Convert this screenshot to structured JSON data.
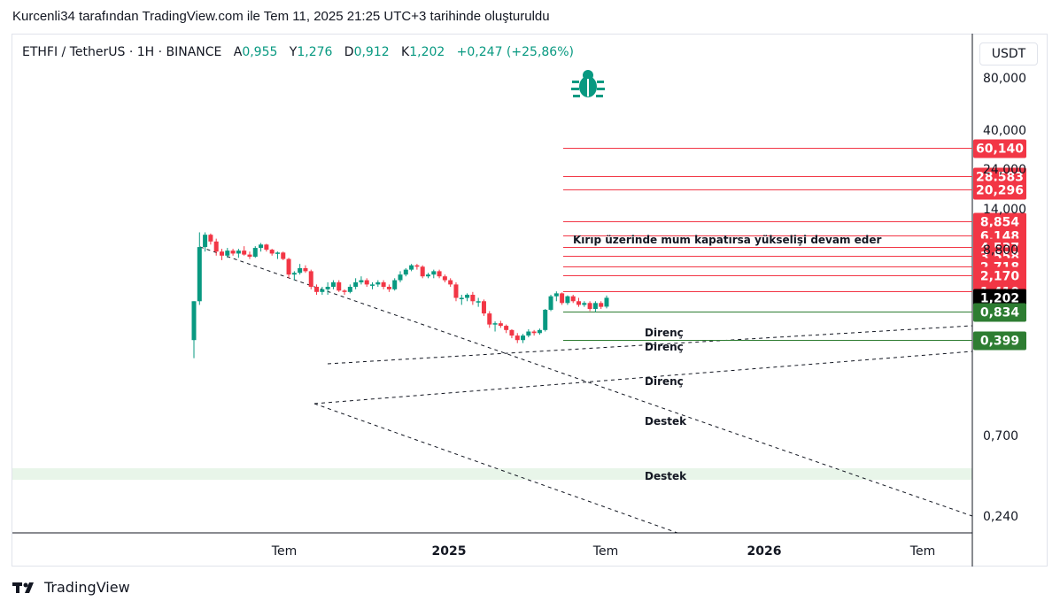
{
  "header": {
    "title": "Kurcenli34 tarafından TradingView.com ile Tem 11, 2025 21:25 UTC+3 tarihinde oluşturuldu"
  },
  "symbol": {
    "pair": "ETHFI / TetherUS · 1H · BINANCE",
    "open_label": "A",
    "open": "0,955",
    "high_label": "Y",
    "high": "1,276",
    "low_label": "D",
    "low": "0,912",
    "close_label": "K",
    "close": "1,202",
    "change": "+0,247 (+25,86%)"
  },
  "currency_button": "USDT",
  "footer": {
    "brand": "TradingView"
  },
  "colors": {
    "up": "#089981",
    "down": "#f23645",
    "resistance": "#f23645",
    "support": "#2e7d32",
    "support_zone": "#e8f5e9",
    "current": "#000000"
  },
  "chart_data": {
    "type": "candlestick",
    "scale": "log",
    "x_ticks": [
      "Tem",
      "2025",
      "Tem",
      "2026",
      "Tem"
    ],
    "y_ticks": [
      "80,000",
      "40,000",
      "24,000",
      "14,000",
      "8,800",
      "0,700",
      "0,240"
    ],
    "price_levels": [
      {
        "label": "60,140",
        "value": 60.14,
        "kind": "resistance"
      },
      {
        "label": "28,583",
        "value": 28.583,
        "kind": "resistance"
      },
      {
        "label": "20,296",
        "value": 20.296,
        "kind": "resistance"
      },
      {
        "label": "8,854",
        "value": 8.854,
        "kind": "resistance"
      },
      {
        "label": "6,148",
        "value": 6.148,
        "kind": "resistance"
      },
      {
        "label": "4,537",
        "value": 4.537,
        "kind": "resistance"
      },
      {
        "label": "3,558",
        "value": 3.558,
        "kind": "resistance"
      },
      {
        "label": "2,718",
        "value": 2.718,
        "kind": "resistance"
      },
      {
        "label": "2,170",
        "value": 2.17,
        "kind": "resistance"
      },
      {
        "label": "1,410",
        "value": 1.41,
        "kind": "resistance"
      },
      {
        "label": "1,202",
        "value": 1.202,
        "kind": "current"
      },
      {
        "label": "0,834",
        "value": 0.834,
        "kind": "support"
      },
      {
        "label": "0,399",
        "value": 0.399,
        "kind": "support"
      }
    ],
    "annotations": [
      {
        "text": "Kırıp üzerinde mum kapatırsa yükselişi devam eder"
      },
      {
        "text": "Direnç"
      },
      {
        "text": "Direnç"
      },
      {
        "text": "Direnç"
      },
      {
        "text": "Destek"
      },
      {
        "text": "Destek"
      }
    ],
    "candles": [
      {
        "o": 0.4,
        "h": 1.1,
        "l": 0.25,
        "c": 1.1
      },
      {
        "o": 1.1,
        "h": 6.6,
        "l": 1.0,
        "c": 4.5
      },
      {
        "o": 4.5,
        "h": 6.6,
        "l": 4.0,
        "c": 6.2
      },
      {
        "o": 6.2,
        "h": 6.4,
        "l": 4.8,
        "c": 5.2
      },
      {
        "o": 5.2,
        "h": 5.6,
        "l": 3.6,
        "c": 4.0
      },
      {
        "o": 4.0,
        "h": 4.3,
        "l": 3.2,
        "c": 3.6
      },
      {
        "o": 3.6,
        "h": 4.4,
        "l": 3.4,
        "c": 4.1
      },
      {
        "o": 4.1,
        "h": 4.3,
        "l": 3.6,
        "c": 3.8
      },
      {
        "o": 3.8,
        "h": 4.3,
        "l": 3.4,
        "c": 4.1
      },
      {
        "o": 4.1,
        "h": 4.6,
        "l": 3.6,
        "c": 3.7
      },
      {
        "o": 3.7,
        "h": 4.0,
        "l": 3.3,
        "c": 3.5
      },
      {
        "o": 3.5,
        "h": 4.6,
        "l": 3.4,
        "c": 4.4
      },
      {
        "o": 4.4,
        "h": 5.0,
        "l": 4.0,
        "c": 4.8
      },
      {
        "o": 4.8,
        "h": 4.9,
        "l": 4.0,
        "c": 4.2
      },
      {
        "o": 4.2,
        "h": 4.3,
        "l": 3.6,
        "c": 3.8
      },
      {
        "o": 3.8,
        "h": 4.0,
        "l": 3.3,
        "c": 3.9
      },
      {
        "o": 3.9,
        "h": 4.0,
        "l": 3.2,
        "c": 3.3
      },
      {
        "o": 3.3,
        "h": 3.4,
        "l": 2.0,
        "c": 2.2
      },
      {
        "o": 2.2,
        "h": 2.4,
        "l": 1.9,
        "c": 2.3
      },
      {
        "o": 2.3,
        "h": 2.9,
        "l": 2.2,
        "c": 2.6
      },
      {
        "o": 2.6,
        "h": 2.8,
        "l": 2.3,
        "c": 2.4
      },
      {
        "o": 2.4,
        "h": 2.5,
        "l": 1.5,
        "c": 1.6
      },
      {
        "o": 1.6,
        "h": 1.7,
        "l": 1.3,
        "c": 1.4
      },
      {
        "o": 1.4,
        "h": 1.6,
        "l": 1.3,
        "c": 1.5
      },
      {
        "o": 1.5,
        "h": 1.8,
        "l": 1.3,
        "c": 1.6
      },
      {
        "o": 1.6,
        "h": 1.9,
        "l": 1.5,
        "c": 1.8
      },
      {
        "o": 1.8,
        "h": 1.9,
        "l": 1.4,
        "c": 1.45
      },
      {
        "o": 1.45,
        "h": 1.5,
        "l": 1.3,
        "c": 1.4
      },
      {
        "o": 1.4,
        "h": 1.7,
        "l": 1.35,
        "c": 1.6
      },
      {
        "o": 1.6,
        "h": 2.0,
        "l": 1.5,
        "c": 1.8
      },
      {
        "o": 1.8,
        "h": 2.1,
        "l": 1.7,
        "c": 1.9
      },
      {
        "o": 1.9,
        "h": 2.0,
        "l": 1.6,
        "c": 1.7
      },
      {
        "o": 1.7,
        "h": 1.8,
        "l": 1.5,
        "c": 1.7
      },
      {
        "o": 1.7,
        "h": 1.9,
        "l": 1.6,
        "c": 1.8
      },
      {
        "o": 1.8,
        "h": 1.9,
        "l": 1.5,
        "c": 1.6
      },
      {
        "o": 1.6,
        "h": 1.7,
        "l": 1.4,
        "c": 1.5
      },
      {
        "o": 1.5,
        "h": 2.0,
        "l": 1.45,
        "c": 1.9
      },
      {
        "o": 1.9,
        "h": 2.4,
        "l": 1.8,
        "c": 2.2
      },
      {
        "o": 2.2,
        "h": 2.6,
        "l": 2.1,
        "c": 2.5
      },
      {
        "o": 2.5,
        "h": 2.9,
        "l": 2.4,
        "c": 2.8
      },
      {
        "o": 2.8,
        "h": 2.9,
        "l": 2.5,
        "c": 2.7
      },
      {
        "o": 2.7,
        "h": 2.8,
        "l": 2.0,
        "c": 2.1
      },
      {
        "o": 2.1,
        "h": 2.3,
        "l": 2.0,
        "c": 2.2
      },
      {
        "o": 2.2,
        "h": 2.5,
        "l": 2.0,
        "c": 2.4
      },
      {
        "o": 2.4,
        "h": 2.5,
        "l": 2.0,
        "c": 2.1
      },
      {
        "o": 2.1,
        "h": 2.2,
        "l": 1.8,
        "c": 1.9
      },
      {
        "o": 1.9,
        "h": 2.0,
        "l": 1.6,
        "c": 1.7
      },
      {
        "o": 1.7,
        "h": 1.8,
        "l": 1.1,
        "c": 1.2
      },
      {
        "o": 1.2,
        "h": 1.3,
        "l": 1.0,
        "c": 1.2
      },
      {
        "o": 1.2,
        "h": 1.35,
        "l": 1.1,
        "c": 1.3
      },
      {
        "o": 1.3,
        "h": 1.4,
        "l": 1.0,
        "c": 1.1
      },
      {
        "o": 1.1,
        "h": 1.2,
        "l": 0.95,
        "c": 1.1
      },
      {
        "o": 1.1,
        "h": 1.15,
        "l": 0.75,
        "c": 0.8
      },
      {
        "o": 0.8,
        "h": 0.85,
        "l": 0.55,
        "c": 0.6
      },
      {
        "o": 0.6,
        "h": 0.65,
        "l": 0.5,
        "c": 0.62
      },
      {
        "o": 0.62,
        "h": 0.66,
        "l": 0.55,
        "c": 0.58
      },
      {
        "o": 0.58,
        "h": 0.6,
        "l": 0.48,
        "c": 0.52
      },
      {
        "o": 0.52,
        "h": 0.53,
        "l": 0.42,
        "c": 0.45
      },
      {
        "o": 0.45,
        "h": 0.48,
        "l": 0.37,
        "c": 0.4
      },
      {
        "o": 0.4,
        "h": 0.47,
        "l": 0.37,
        "c": 0.45
      },
      {
        "o": 0.45,
        "h": 0.53,
        "l": 0.43,
        "c": 0.5
      },
      {
        "o": 0.5,
        "h": 0.52,
        "l": 0.45,
        "c": 0.48
      },
      {
        "o": 0.48,
        "h": 0.54,
        "l": 0.46,
        "c": 0.52
      },
      {
        "o": 0.52,
        "h": 0.9,
        "l": 0.5,
        "c": 0.88
      },
      {
        "o": 0.88,
        "h": 1.3,
        "l": 0.85,
        "c": 1.25
      },
      {
        "o": 1.25,
        "h": 1.42,
        "l": 1.1,
        "c": 1.35
      },
      {
        "o": 1.35,
        "h": 1.38,
        "l": 1.0,
        "c": 1.05
      },
      {
        "o": 1.05,
        "h": 1.28,
        "l": 1.0,
        "c": 1.25
      },
      {
        "o": 1.25,
        "h": 1.3,
        "l": 1.05,
        "c": 1.1
      },
      {
        "o": 1.1,
        "h": 1.2,
        "l": 0.95,
        "c": 1.0
      },
      {
        "o": 1.0,
        "h": 1.1,
        "l": 0.95,
        "c": 1.05
      },
      {
        "o": 1.05,
        "h": 1.1,
        "l": 0.85,
        "c": 0.9
      },
      {
        "o": 0.9,
        "h": 1.1,
        "l": 0.83,
        "c": 1.05
      },
      {
        "o": 1.05,
        "h": 1.1,
        "l": 0.9,
        "c": 0.95
      },
      {
        "o": 0.955,
        "h": 1.276,
        "l": 0.912,
        "c": 1.202
      }
    ]
  }
}
